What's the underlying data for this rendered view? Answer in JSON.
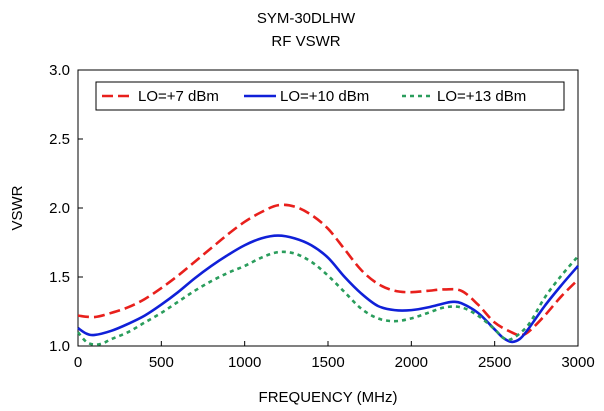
{
  "chart_data": {
    "type": "line",
    "title": "SYM-30DLHW",
    "subtitle": "RF VSWR",
    "xlabel": "FREQUENCY (MHz)",
    "ylabel": "VSWR",
    "xlim": [
      0,
      3000
    ],
    "ylim": [
      1.0,
      3.0
    ],
    "xticks": [
      0,
      500,
      1000,
      1500,
      2000,
      2500,
      3000
    ],
    "yticks": [
      1.0,
      1.5,
      2.0,
      2.5,
      3.0
    ],
    "xtick_labels": [
      "0",
      "500",
      "1000",
      "1500",
      "2000",
      "2500",
      "3000"
    ],
    "ytick_labels": [
      "1.0",
      "1.5",
      "2.0",
      "2.5",
      "3.0"
    ],
    "grid": false,
    "legend_position": "top",
    "series": [
      {
        "name": "LO=+7 dBm",
        "color": "#e8201c",
        "dash": "dashed",
        "x": [
          0,
          100,
          200,
          300,
          400,
          500,
          600,
          700,
          800,
          900,
          1000,
          1100,
          1200,
          1300,
          1400,
          1500,
          1600,
          1700,
          1800,
          1900,
          2000,
          2100,
          2200,
          2300,
          2400,
          2500,
          2600,
          2650,
          2700,
          2800,
          2900,
          3000
        ],
        "y": [
          1.22,
          1.21,
          1.24,
          1.28,
          1.34,
          1.42,
          1.51,
          1.61,
          1.71,
          1.81,
          1.9,
          1.97,
          2.02,
          2.01,
          1.95,
          1.85,
          1.7,
          1.55,
          1.45,
          1.4,
          1.39,
          1.4,
          1.41,
          1.4,
          1.3,
          1.17,
          1.1,
          1.08,
          1.1,
          1.22,
          1.36,
          1.48
        ]
      },
      {
        "name": "LO=+10 dBm",
        "color": "#1020d8",
        "dash": "solid",
        "x": [
          0,
          50,
          100,
          200,
          300,
          400,
          500,
          600,
          700,
          800,
          900,
          1000,
          1100,
          1200,
          1300,
          1400,
          1500,
          1600,
          1700,
          1800,
          1900,
          2000,
          2100,
          2200,
          2250,
          2300,
          2400,
          2500,
          2550,
          2600,
          2650,
          2700,
          2800,
          2900,
          3000
        ],
        "y": [
          1.13,
          1.09,
          1.08,
          1.11,
          1.16,
          1.22,
          1.3,
          1.39,
          1.49,
          1.58,
          1.66,
          1.73,
          1.78,
          1.8,
          1.78,
          1.73,
          1.64,
          1.5,
          1.38,
          1.29,
          1.26,
          1.26,
          1.28,
          1.31,
          1.32,
          1.31,
          1.24,
          1.12,
          1.06,
          1.03,
          1.05,
          1.12,
          1.29,
          1.44,
          1.58
        ]
      },
      {
        "name": "LO=+13 dBm",
        "color": "#2a9d5c",
        "dash": "dotted",
        "x": [
          0,
          50,
          100,
          150,
          200,
          300,
          400,
          500,
          600,
          700,
          800,
          900,
          1000,
          1100,
          1200,
          1300,
          1400,
          1500,
          1600,
          1700,
          1800,
          1900,
          2000,
          2100,
          2200,
          2300,
          2400,
          2500,
          2550,
          2600,
          2700,
          2800,
          2900,
          3000
        ],
        "y": [
          1.1,
          1.03,
          1.01,
          1.02,
          1.05,
          1.1,
          1.17,
          1.24,
          1.32,
          1.4,
          1.47,
          1.53,
          1.58,
          1.64,
          1.68,
          1.67,
          1.61,
          1.51,
          1.39,
          1.27,
          1.2,
          1.18,
          1.2,
          1.24,
          1.28,
          1.28,
          1.22,
          1.12,
          1.06,
          1.05,
          1.15,
          1.35,
          1.51,
          1.65
        ]
      }
    ]
  }
}
